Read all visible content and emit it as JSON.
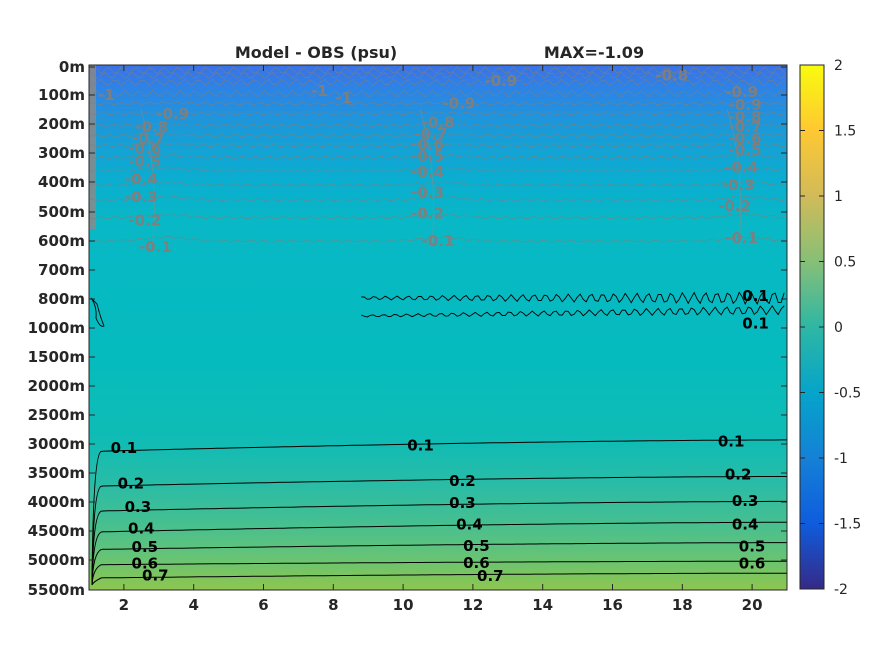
{
  "chart_data": {
    "type": "heatmap",
    "title_left": "Model - OBS (psu)",
    "title_right": "MAX=-1.09",
    "colormap": "parula",
    "x": {
      "ticks": [
        2,
        4,
        6,
        8,
        10,
        12,
        14,
        16,
        18,
        20
      ],
      "tick_labels": [
        "2",
        "4",
        "6",
        "8",
        "10",
        "12",
        "14",
        "16",
        "18",
        "20"
      ],
      "range": [
        1,
        21
      ]
    },
    "y": {
      "tick_labels": [
        "0m",
        "100m",
        "200m",
        "300m",
        "400m",
        "500m",
        "600m",
        "700m",
        "800m",
        "1000m",
        "1500m",
        "2000m",
        "2500m",
        "3000m",
        "3500m",
        "4000m",
        "4500m",
        "5000m",
        "5500m"
      ],
      "depths_m": [
        0,
        100,
        200,
        300,
        400,
        500,
        600,
        700,
        800,
        1000,
        1500,
        2000,
        2500,
        3000,
        3500,
        4000,
        4500,
        5000,
        5500
      ],
      "direction": "reverse"
    },
    "colorbar": {
      "range": [
        -2,
        2
      ],
      "ticks": [
        2,
        1.5,
        1,
        0.5,
        0,
        -0.5,
        -1,
        -1.5,
        -2
      ],
      "tick_labels": [
        "2",
        "1.5",
        "1",
        "0.5",
        "0",
        "-0.5",
        "-1",
        "-1.5",
        "-2"
      ]
    },
    "upper_contours": {
      "color": "#808080",
      "levels": [
        -1,
        -0.9,
        -0.8,
        -0.7,
        -0.6,
        -0.5,
        -0.4,
        -0.3,
        -0.2,
        -0.1
      ],
      "labels": [
        {
          "text": "-1",
          "x": 1.5,
          "depth": 100
        },
        {
          "text": "-1",
          "x": 7.6,
          "depth": 85
        },
        {
          "text": "-1",
          "x": 8.3,
          "depth": 110
        },
        {
          "text": "-0.9",
          "x": 12.8,
          "depth": 50
        },
        {
          "text": "-0.8",
          "x": 17.7,
          "depth": 30
        },
        {
          "text": "-0.9",
          "x": 3.4,
          "depth": 165
        },
        {
          "text": "-0.8",
          "x": 2.8,
          "depth": 210
        },
        {
          "text": "-0.7",
          "x": 2.7,
          "depth": 250
        },
        {
          "text": "-0.6",
          "x": 2.6,
          "depth": 285
        },
        {
          "text": "-0.5",
          "x": 2.6,
          "depth": 330
        },
        {
          "text": "-0.4",
          "x": 2.5,
          "depth": 390
        },
        {
          "text": "-0.3",
          "x": 2.5,
          "depth": 450
        },
        {
          "text": "-0.2",
          "x": 2.6,
          "depth": 530
        },
        {
          "text": "-0.1",
          "x": 2.9,
          "depth": 620
        },
        {
          "text": "-0.9",
          "x": 11.6,
          "depth": 130
        },
        {
          "text": "-0.8",
          "x": 11.0,
          "depth": 195
        },
        {
          "text": "-0.7",
          "x": 10.8,
          "depth": 235
        },
        {
          "text": "-0.6",
          "x": 10.7,
          "depth": 270
        },
        {
          "text": "-0.5",
          "x": 10.7,
          "depth": 310
        },
        {
          "text": "-0.4",
          "x": 10.7,
          "depth": 365
        },
        {
          "text": "-0.3",
          "x": 10.7,
          "depth": 435
        },
        {
          "text": "-0.2",
          "x": 10.7,
          "depth": 505
        },
        {
          "text": "-0.1",
          "x": 11.0,
          "depth": 600
        },
        {
          "text": "-0.9",
          "x": 19.7,
          "depth": 90
        },
        {
          "text": "-0.9",
          "x": 19.8,
          "depth": 135
        },
        {
          "text": "-0.8",
          "x": 19.8,
          "depth": 175
        },
        {
          "text": "-0.7",
          "x": 19.8,
          "depth": 210
        },
        {
          "text": "-0.6",
          "x": 19.8,
          "depth": 250
        },
        {
          "text": "-0.5",
          "x": 19.8,
          "depth": 290
        },
        {
          "text": "-0.4",
          "x": 19.7,
          "depth": 350
        },
        {
          "text": "-0.3",
          "x": 19.6,
          "depth": 410
        },
        {
          "text": "-0.2",
          "x": 19.5,
          "depth": 480
        },
        {
          "text": "-0.1",
          "x": 19.7,
          "depth": 590
        }
      ]
    },
    "lower_contours": {
      "color": "#000000",
      "lines": [
        {
          "level": 0.1,
          "depth_start": 3130,
          "depth_end": 2930
        },
        {
          "level": 0.2,
          "depth_start": 3730,
          "depth_end": 3560
        },
        {
          "level": 0.3,
          "depth_start": 4160,
          "depth_end": 3990
        },
        {
          "level": 0.4,
          "depth_start": 4520,
          "depth_end": 4350
        },
        {
          "level": 0.5,
          "depth_start": 4820,
          "depth_end": 4700
        },
        {
          "level": 0.6,
          "depth_start": 5080,
          "depth_end": 5020
        },
        {
          "level": 0.7,
          "depth_start": 5300,
          "depth_end": 5220
        }
      ],
      "labels": [
        {
          "text": "0.1",
          "x": 2.0,
          "depth": 3070
        },
        {
          "text": "0.2",
          "x": 2.2,
          "depth": 3680
        },
        {
          "text": "0.3",
          "x": 2.4,
          "depth": 4090
        },
        {
          "text": "0.4",
          "x": 2.5,
          "depth": 4460
        },
        {
          "text": "0.5",
          "x": 2.6,
          "depth": 4780
        },
        {
          "text": "0.6",
          "x": 2.6,
          "depth": 5060
        },
        {
          "text": "0.7",
          "x": 2.9,
          "depth": 5260
        },
        {
          "text": "0.1",
          "x": 10.5,
          "depth": 3030
        },
        {
          "text": "0.2",
          "x": 11.7,
          "depth": 3640
        },
        {
          "text": "0.3",
          "x": 11.7,
          "depth": 4020
        },
        {
          "text": "0.4",
          "x": 11.9,
          "depth": 4390
        },
        {
          "text": "0.5",
          "x": 12.1,
          "depth": 4760
        },
        {
          "text": "0.6",
          "x": 12.1,
          "depth": 5050
        },
        {
          "text": "0.7",
          "x": 12.5,
          "depth": 5270
        },
        {
          "text": "0.1",
          "x": 19.4,
          "depth": 2960
        },
        {
          "text": "0.2",
          "x": 19.6,
          "depth": 3530
        },
        {
          "text": "0.3",
          "x": 19.8,
          "depth": 3980
        },
        {
          "text": "0.4",
          "x": 19.8,
          "depth": 4390
        },
        {
          "text": "0.5",
          "x": 20.0,
          "depth": 4770
        },
        {
          "text": "0.6",
          "x": 20.0,
          "depth": 5060
        }
      ]
    },
    "mid_contour": {
      "level": 0.1,
      "labels": [
        {
          "text": "0.1",
          "x": 20.1,
          "depth": 790
        },
        {
          "text": "0.1",
          "x": 20.1,
          "depth": 970
        }
      ]
    }
  }
}
